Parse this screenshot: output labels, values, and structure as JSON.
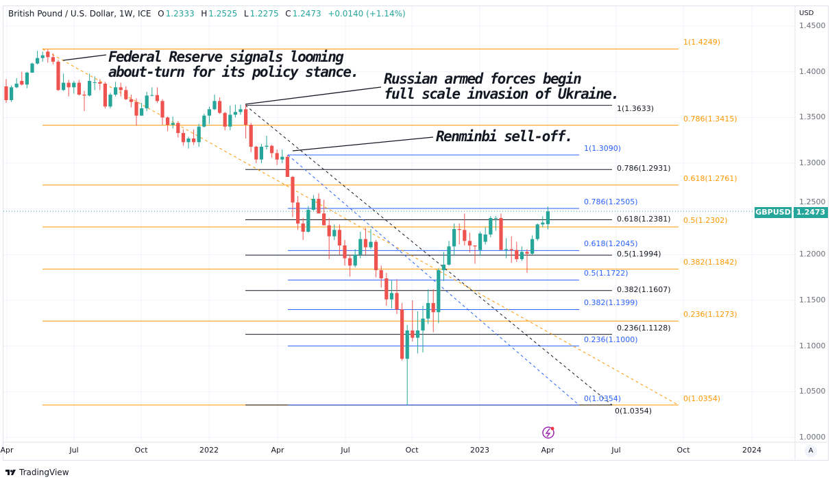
{
  "legend": {
    "symbol": "British Pound / U.S. Dollar, 1W, ICE",
    "o_label": "O",
    "o": "1.2333",
    "h_label": "H",
    "h": "1.2525",
    "l_label": "L",
    "l": "1.2275",
    "c_label": "C",
    "c": "1.2473",
    "change": "+0.0140 (+1.14%)"
  },
  "price_axis": {
    "currency": "USD",
    "ticks": [
      "1.4500",
      "1.4000",
      "1.3500",
      "1.3000",
      "1.2500",
      "1.2000",
      "1.1500",
      "1.1000",
      "1.0500",
      "1.0000"
    ],
    "tick_values": [
      1.45,
      1.4,
      1.35,
      1.3,
      1.25,
      1.2,
      1.15,
      1.1,
      1.05,
      1.0
    ]
  },
  "time_axis": {
    "ticks": [
      "Apr",
      "Jul",
      "Oct",
      "2022",
      "Apr",
      "Jul",
      "Oct",
      "2023",
      "Apr",
      "Jul",
      "Oct",
      "2024"
    ]
  },
  "symbol_tag": {
    "name": "GBPUSD",
    "price": "1.2473",
    "color": "#26a69a"
  },
  "auto_scale_label": "A",
  "brand": "TradingView",
  "annotations": {
    "fed": [
      "Federal Reserve signals looming",
      "about-turn for its policy stance."
    ],
    "russia": [
      "Russian armed forces begin",
      "full scale invasion of Ukraine."
    ],
    "renminbi": [
      "Renminbi sell-off."
    ]
  },
  "colors": {
    "up": "#26a69a",
    "down": "#ef5350",
    "fib_orange": "#ff9800",
    "fib_black": "#131722",
    "fib_blue": "#2962ff"
  },
  "chart_data": {
    "type": "candlestick",
    "title": "British Pound / U.S. Dollar, 1W, ICE",
    "ylabel": "USD",
    "ylim": [
      1.0,
      1.45
    ],
    "x_start": "2021-04-05",
    "interval": "1W",
    "candles_ohlc": [
      [
        1.384,
        1.392,
        1.366,
        1.369
      ],
      [
        1.369,
        1.385,
        1.367,
        1.383
      ],
      [
        1.383,
        1.393,
        1.382,
        1.387
      ],
      [
        1.39,
        1.4,
        1.385,
        1.386
      ],
      [
        1.386,
        1.4,
        1.382,
        1.399
      ],
      [
        1.399,
        1.41,
        1.399,
        1.409
      ],
      [
        1.409,
        1.423,
        1.408,
        1.415
      ],
      [
        1.415,
        1.422,
        1.411,
        1.418
      ],
      [
        1.422,
        1.4249,
        1.41,
        1.416
      ],
      [
        1.416,
        1.42,
        1.408,
        1.411
      ],
      [
        1.411,
        1.413,
        1.379,
        1.38
      ],
      [
        1.38,
        1.398,
        1.379,
        1.388
      ],
      [
        1.388,
        1.391,
        1.373,
        1.383
      ],
      [
        1.383,
        1.39,
        1.376,
        1.388
      ],
      [
        1.388,
        1.391,
        1.374,
        1.375
      ],
      [
        1.375,
        1.379,
        1.357,
        1.374
      ],
      [
        1.374,
        1.398,
        1.373,
        1.39
      ],
      [
        1.388,
        1.395,
        1.38,
        1.3885
      ],
      [
        1.3885,
        1.392,
        1.38,
        1.387
      ],
      [
        1.387,
        1.389,
        1.36,
        1.362
      ],
      [
        1.362,
        1.377,
        1.36,
        1.375
      ],
      [
        1.375,
        1.389,
        1.373,
        1.383
      ],
      [
        1.383,
        1.388,
        1.373,
        1.38
      ],
      [
        1.38,
        1.384,
        1.369,
        1.37
      ],
      [
        1.37,
        1.375,
        1.361,
        1.367
      ],
      [
        1.367,
        1.371,
        1.341,
        1.352
      ],
      [
        1.352,
        1.366,
        1.352,
        1.36
      ],
      [
        1.36,
        1.378,
        1.357,
        1.374
      ],
      [
        1.374,
        1.383,
        1.373,
        1.3745
      ],
      [
        1.3745,
        1.383,
        1.366,
        1.368
      ],
      [
        1.368,
        1.37,
        1.342,
        1.35
      ],
      [
        1.35,
        1.351,
        1.335,
        1.342
      ],
      [
        1.342,
        1.351,
        1.338,
        1.344
      ],
      [
        1.344,
        1.346,
        1.328,
        1.333
      ],
      [
        1.333,
        1.337,
        1.319,
        1.323
      ],
      [
        1.323,
        1.329,
        1.316,
        1.327
      ],
      [
        1.327,
        1.337,
        1.32,
        1.323
      ],
      [
        1.323,
        1.343,
        1.318,
        1.34
      ],
      [
        1.34,
        1.354,
        1.339,
        1.352
      ],
      [
        1.352,
        1.362,
        1.343,
        1.359
      ],
      [
        1.359,
        1.375,
        1.358,
        1.368
      ],
      [
        1.368,
        1.372,
        1.354,
        1.355
      ],
      [
        1.355,
        1.356,
        1.336,
        1.34
      ],
      [
        1.34,
        1.363,
        1.336,
        1.353
      ],
      [
        1.353,
        1.364,
        1.35,
        1.356
      ],
      [
        1.356,
        1.364,
        1.353,
        1.359
      ],
      [
        1.359,
        1.364,
        1.327,
        1.342
      ],
      [
        1.342,
        1.344,
        1.312,
        1.318
      ],
      [
        1.318,
        1.319,
        1.3,
        1.304
      ],
      [
        1.304,
        1.321,
        1.3,
        1.318
      ],
      [
        1.318,
        1.33,
        1.315,
        1.319
      ],
      [
        1.319,
        1.32,
        1.306,
        1.311
      ],
      [
        1.311,
        1.315,
        1.298,
        1.304
      ],
      [
        1.304,
        1.315,
        1.3,
        1.307
      ],
      [
        1.307,
        1.309,
        1.285,
        1.285
      ],
      [
        1.285,
        1.286,
        1.241,
        1.257
      ],
      [
        1.257,
        1.264,
        1.227,
        1.234
      ],
      [
        1.234,
        1.24,
        1.216,
        1.225
      ],
      [
        1.225,
        1.253,
        1.224,
        1.249
      ],
      [
        1.249,
        1.265,
        1.248,
        1.261
      ],
      [
        1.261,
        1.267,
        1.246,
        1.245
      ],
      [
        1.245,
        1.26,
        1.235,
        1.232
      ],
      [
        1.232,
        1.24,
        1.195,
        1.22
      ],
      [
        1.22,
        1.233,
        1.216,
        1.227
      ],
      [
        1.227,
        1.233,
        1.2,
        1.21
      ],
      [
        1.21,
        1.216,
        1.188,
        1.196
      ],
      [
        1.196,
        1.2,
        1.176,
        1.188
      ],
      [
        1.188,
        1.206,
        1.186,
        1.2
      ],
      [
        1.2,
        1.225,
        1.196,
        1.217
      ],
      [
        1.217,
        1.229,
        1.2,
        1.208
      ],
      [
        1.208,
        1.228,
        1.206,
        1.214
      ],
      [
        1.214,
        1.216,
        1.175,
        1.183
      ],
      [
        1.183,
        1.188,
        1.164,
        1.174
      ],
      [
        1.174,
        1.18,
        1.144,
        1.151
      ],
      [
        1.151,
        1.172,
        1.141,
        1.158
      ],
      [
        1.158,
        1.173,
        1.135,
        1.14
      ],
      [
        1.14,
        1.147,
        1.084,
        1.086
      ],
      [
        1.086,
        1.123,
        1.0354,
        1.117
      ],
      [
        1.117,
        1.15,
        1.105,
        1.109
      ],
      [
        1.109,
        1.138,
        1.092,
        1.117
      ],
      [
        1.117,
        1.144,
        1.093,
        1.13
      ],
      [
        1.13,
        1.162,
        1.124,
        1.147
      ],
      [
        1.147,
        1.162,
        1.115,
        1.137
      ],
      [
        1.137,
        1.185,
        1.125,
        1.183
      ],
      [
        1.183,
        1.203,
        1.171,
        1.189
      ],
      [
        1.189,
        1.215,
        1.188,
        1.209
      ],
      [
        1.209,
        1.234,
        1.199,
        1.228
      ],
      [
        1.228,
        1.234,
        1.211,
        1.227
      ],
      [
        1.227,
        1.245,
        1.21,
        1.215
      ],
      [
        1.215,
        1.224,
        1.202,
        1.21
      ],
      [
        1.21,
        1.21,
        1.19,
        1.209
      ],
      [
        1.205,
        1.225,
        1.199,
        1.223
      ],
      [
        1.214,
        1.23,
        1.211,
        1.222
      ],
      [
        1.222,
        1.242,
        1.219,
        1.24
      ],
      [
        1.24,
        1.242,
        1.226,
        1.24
      ],
      [
        1.24,
        1.245,
        1.205,
        1.205
      ],
      [
        1.205,
        1.218,
        1.196,
        1.206
      ],
      [
        1.206,
        1.22,
        1.191,
        1.205
      ],
      [
        1.205,
        1.214,
        1.192,
        1.195
      ],
      [
        1.195,
        1.209,
        1.193,
        1.203
      ],
      [
        1.203,
        1.206,
        1.18,
        1.201
      ],
      [
        1.201,
        1.221,
        1.2,
        1.217
      ],
      [
        1.217,
        1.234,
        1.215,
        1.233
      ],
      [
        1.233,
        1.242,
        1.23,
        1.235
      ],
      [
        1.2333,
        1.2525,
        1.2275,
        1.2473
      ]
    ],
    "fib_sets": [
      {
        "name": "orange",
        "color": "#ff9800",
        "levels": [
          {
            "label": "1(1.4249)",
            "price": 1.4249
          },
          {
            "label": "0.786(1.3415)",
            "price": 1.3415
          },
          {
            "label": "0.618(1.2761)",
            "price": 1.2761
          },
          {
            "label": "0.5(1.2302)",
            "price": 1.2302
          },
          {
            "label": "0.382(1.1842)",
            "price": 1.1842
          },
          {
            "label": "0.236(1.1273)",
            "price": 1.1273
          },
          {
            "label": "0(1.0354)",
            "price": 1.0354
          }
        ]
      },
      {
        "name": "black",
        "color": "#131722",
        "levels": [
          {
            "label": "1(1.3633)",
            "price": 1.3633
          },
          {
            "label": "0.786(1.2931)",
            "price": 1.2931
          },
          {
            "label": "0.618(1.2381)",
            "price": 1.2381
          },
          {
            "label": "0.5(1.1994)",
            "price": 1.1994
          },
          {
            "label": "0.382(1.1607)",
            "price": 1.1607
          },
          {
            "label": "0.236(1.1128)",
            "price": 1.1128
          },
          {
            "label": "0(1.0354)",
            "price": 1.0354
          }
        ]
      },
      {
        "name": "blue",
        "color": "#2962ff",
        "levels": [
          {
            "label": "1(1.3090)",
            "price": 1.309
          },
          {
            "label": "0.786(1.2505)",
            "price": 1.2505
          },
          {
            "label": "0.618(1.2045)",
            "price": 1.2045
          },
          {
            "label": "0.5(1.1722)",
            "price": 1.1722
          },
          {
            "label": "0.382(1.1399)",
            "price": 1.1399
          },
          {
            "label": "0.236(1.1000)",
            "price": 1.1
          },
          {
            "label": "0(1.0354)",
            "price": 1.0354
          }
        ]
      }
    ]
  }
}
